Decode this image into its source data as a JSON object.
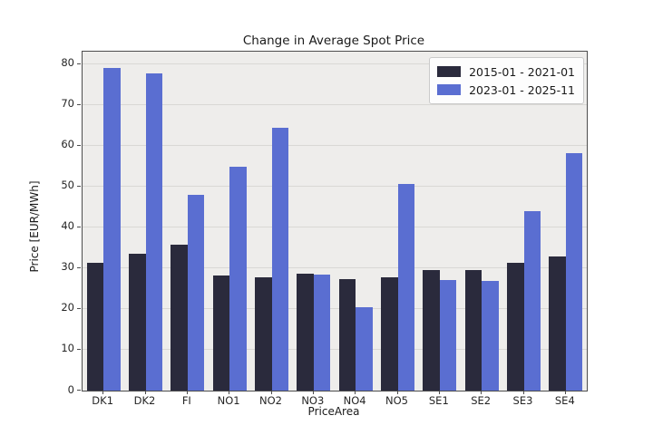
{
  "chart_data": {
    "type": "bar",
    "title": "Change in Average Spot Price",
    "xlabel": "PriceArea",
    "ylabel": "Price [EUR/MWh]",
    "categories": [
      "DK1",
      "DK2",
      "FI",
      "NO1",
      "NO2",
      "NO3",
      "NO4",
      "NO5",
      "SE1",
      "SE2",
      "SE3",
      "SE4"
    ],
    "series": [
      {
        "name": "2015-01 - 2021-01",
        "color": "#2a2a3c",
        "values": [
          31.4,
          33.6,
          35.8,
          28.1,
          27.8,
          28.7,
          27.2,
          27.7,
          29.6,
          29.6,
          31.2,
          32.8
        ]
      },
      {
        "name": "2023-01 - 2025-11",
        "color": "#5a6ed1",
        "values": [
          79.0,
          77.6,
          48.0,
          54.8,
          64.3,
          28.3,
          20.4,
          50.6,
          27.1,
          26.8,
          44.0,
          58.1
        ]
      }
    ],
    "yticks": [
      0,
      10,
      20,
      30,
      40,
      50,
      60,
      70,
      80
    ],
    "ylim": [
      0,
      83
    ],
    "grid": true,
    "legend_position": "upper right",
    "colors": {
      "plot_background": "#eeedeb",
      "gridline": "#d9d8d5",
      "spine": "#4d4d4d",
      "figure_background": "#ffffff",
      "text": "#1a1a1a"
    }
  }
}
